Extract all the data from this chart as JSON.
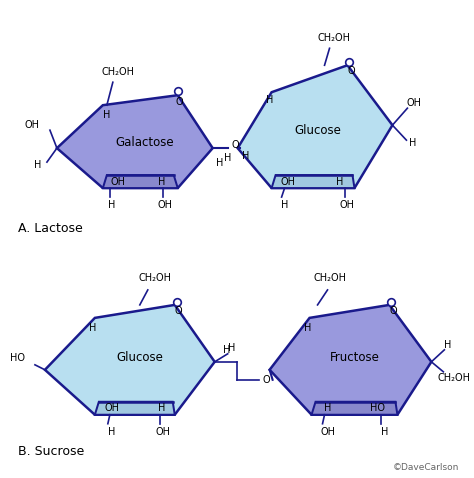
{
  "bg_color": "#ffffff",
  "ring_edge_color": "#1a1a8c",
  "ring_linewidth": 1.8,
  "galactose_fill": "#9999dd",
  "glucose_a_fill": "#b8dff0",
  "glucose_b_fill": "#b8dff0",
  "fructose_fill": "#9999dd",
  "inner_band_gal": "#8888cc",
  "inner_band_glc": "#a0c8e0",
  "inner_band_fru": "#8888cc",
  "lactose_label": "A. Lactose",
  "sucrose_label": "B. Sucrose",
  "copyright": "©DaveCarlson",
  "label_fontsize": 8.5,
  "small_fontsize": 7.0,
  "section_fontsize": 9.0
}
